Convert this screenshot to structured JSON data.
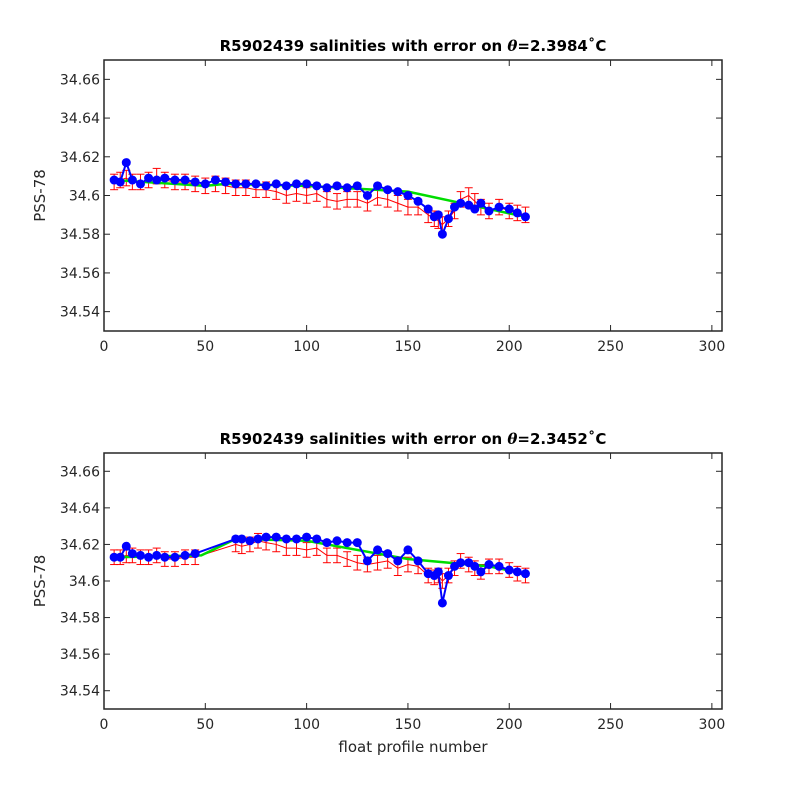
{
  "chart_data": [
    {
      "type": "line",
      "title": "R5902439 salinities with error on θ=2.3984˚C",
      "title_parts": {
        "prefix": "R5902439 salinities with error on ",
        "symbol": "θ",
        "value": "=2.3984",
        "unit": "˚C"
      },
      "xlabel": "",
      "ylabel": "PSS-78",
      "xlim": [
        0,
        305
      ],
      "ylim": [
        34.53,
        34.67
      ],
      "xticks": [
        0,
        50,
        100,
        150,
        200,
        250,
        300
      ],
      "xtick_labels": [
        "0",
        "50",
        "100",
        "150",
        "200",
        "250",
        "300"
      ],
      "yticks": [
        34.54,
        34.56,
        34.58,
        34.6,
        34.62,
        34.64,
        34.66
      ],
      "ytick_labels": [
        "34.54",
        "34.56",
        "34.58",
        "34.6",
        "34.62",
        "34.64",
        "34.66"
      ],
      "grid": false,
      "colors": {
        "raw": "#0000ff",
        "calibrated": "#ff0000",
        "fit": "#00dd00"
      },
      "series": [
        {
          "role": "raw",
          "x": [
            5,
            8,
            11,
            14,
            18,
            22,
            26,
            30,
            35,
            40,
            45,
            50,
            55,
            60,
            65,
            70,
            75,
            80,
            85,
            90,
            95,
            100,
            105,
            110,
            115,
            120,
            125,
            130,
            135,
            140,
            145,
            150,
            155,
            160,
            163,
            165,
            167,
            170,
            173,
            176,
            180,
            183,
            186,
            190,
            195,
            200,
            204,
            208
          ],
          "y": [
            34.608,
            34.607,
            34.617,
            34.608,
            34.606,
            34.609,
            34.608,
            34.609,
            34.608,
            34.608,
            34.607,
            34.606,
            34.608,
            34.607,
            34.606,
            34.606,
            34.606,
            34.605,
            34.606,
            34.605,
            34.606,
            34.606,
            34.605,
            34.604,
            34.605,
            34.604,
            34.605,
            34.6,
            34.605,
            34.603,
            34.602,
            34.6,
            34.597,
            34.593,
            34.589,
            34.59,
            34.58,
            34.588,
            34.594,
            34.596,
            34.595,
            34.593,
            34.596,
            34.592,
            34.594,
            34.593,
            34.591,
            34.589
          ]
        },
        {
          "role": "calibrated",
          "x": [
            5,
            8,
            11,
            14,
            18,
            22,
            26,
            30,
            35,
            40,
            45,
            50,
            55,
            60,
            65,
            70,
            75,
            80,
            85,
            90,
            95,
            100,
            105,
            110,
            115,
            120,
            125,
            130,
            135,
            140,
            145,
            150,
            155,
            160,
            163,
            165,
            167,
            170,
            173,
            176,
            180,
            183,
            186,
            190,
            195,
            200,
            204,
            208
          ],
          "y": [
            34.607,
            34.608,
            34.609,
            34.607,
            34.607,
            34.608,
            34.61,
            34.608,
            34.607,
            34.607,
            34.606,
            34.605,
            34.606,
            34.605,
            34.604,
            34.604,
            34.603,
            34.603,
            34.602,
            34.6,
            34.601,
            34.6,
            34.601,
            34.598,
            34.597,
            34.598,
            34.598,
            34.596,
            34.599,
            34.598,
            34.596,
            34.594,
            34.594,
            34.59,
            34.588,
            34.587,
            34.585,
            34.588,
            34.592,
            34.598,
            34.6,
            34.597,
            34.594,
            34.592,
            34.594,
            34.592,
            34.591,
            34.59
          ]
        },
        {
          "role": "fit",
          "x": [
            5,
            50,
            60,
            100,
            150,
            190,
            208
          ],
          "y": [
            34.608,
            34.605,
            34.606,
            34.605,
            34.602,
            34.593,
            34.589
          ]
        }
      ],
      "error": 0.004
    },
    {
      "type": "line",
      "title": "R5902439 salinities with error on θ=2.3452˚C",
      "title_parts": {
        "prefix": "R5902439 salinities with error on ",
        "symbol": "θ",
        "value": "=2.3452",
        "unit": "˚C"
      },
      "xlabel": "float profile number",
      "ylabel": "PSS-78",
      "xlim": [
        0,
        305
      ],
      "ylim": [
        34.53,
        34.67
      ],
      "xticks": [
        0,
        50,
        100,
        150,
        200,
        250,
        300
      ],
      "xtick_labels": [
        "0",
        "50",
        "100",
        "150",
        "200",
        "250",
        "300"
      ],
      "yticks": [
        34.54,
        34.56,
        34.58,
        34.6,
        34.62,
        34.64,
        34.66
      ],
      "ytick_labels": [
        "34.54",
        "34.56",
        "34.58",
        "34.6",
        "34.62",
        "34.64",
        "34.66"
      ],
      "grid": false,
      "colors": {
        "raw": "#0000ff",
        "calibrated": "#ff0000",
        "fit": "#00dd00"
      },
      "series": [
        {
          "role": "raw",
          "x": [
            5,
            8,
            11,
            14,
            18,
            22,
            26,
            30,
            35,
            40,
            45,
            65,
            68,
            72,
            76,
            80,
            85,
            90,
            95,
            100,
            105,
            110,
            115,
            120,
            125,
            130,
            135,
            140,
            145,
            150,
            155,
            160,
            163,
            165,
            167,
            170,
            173,
            176,
            180,
            183,
            186,
            190,
            195,
            200,
            204,
            208
          ],
          "y": [
            34.613,
            34.613,
            34.619,
            34.615,
            34.614,
            34.613,
            34.614,
            34.613,
            34.613,
            34.614,
            34.615,
            34.623,
            34.623,
            34.622,
            34.623,
            34.624,
            34.624,
            34.623,
            34.623,
            34.624,
            34.623,
            34.621,
            34.622,
            34.621,
            34.621,
            34.611,
            34.617,
            34.615,
            34.611,
            34.617,
            34.611,
            34.604,
            34.603,
            34.605,
            34.588,
            34.603,
            34.608,
            34.61,
            34.61,
            34.608,
            34.605,
            34.609,
            34.608,
            34.606,
            34.605,
            34.604
          ]
        },
        {
          "role": "calibrated",
          "x": [
            5,
            8,
            11,
            14,
            18,
            22,
            26,
            30,
            35,
            40,
            45,
            65,
            68,
            72,
            76,
            80,
            85,
            90,
            95,
            100,
            105,
            110,
            115,
            120,
            125,
            130,
            135,
            140,
            145,
            150,
            155,
            160,
            163,
            165,
            167,
            170,
            173,
            176,
            180,
            183,
            186,
            190,
            195,
            200,
            204,
            208
          ],
          "y": [
            34.613,
            34.613,
            34.614,
            34.614,
            34.613,
            34.613,
            34.614,
            34.612,
            34.612,
            34.613,
            34.613,
            34.62,
            34.619,
            34.62,
            34.622,
            34.621,
            34.62,
            34.618,
            34.618,
            34.617,
            34.618,
            34.614,
            34.614,
            34.612,
            34.61,
            34.609,
            34.61,
            34.611,
            34.607,
            34.609,
            34.608,
            34.603,
            34.602,
            34.603,
            34.6,
            34.603,
            34.607,
            34.611,
            34.609,
            34.607,
            34.605,
            34.608,
            34.608,
            34.606,
            34.604,
            34.603
          ]
        },
        {
          "role": "fit",
          "x": [
            5,
            48,
            65,
            100,
            150,
            190,
            208
          ],
          "y": [
            34.613,
            34.614,
            34.623,
            34.622,
            34.612,
            34.608,
            34.604
          ]
        }
      ],
      "error": 0.004
    }
  ]
}
